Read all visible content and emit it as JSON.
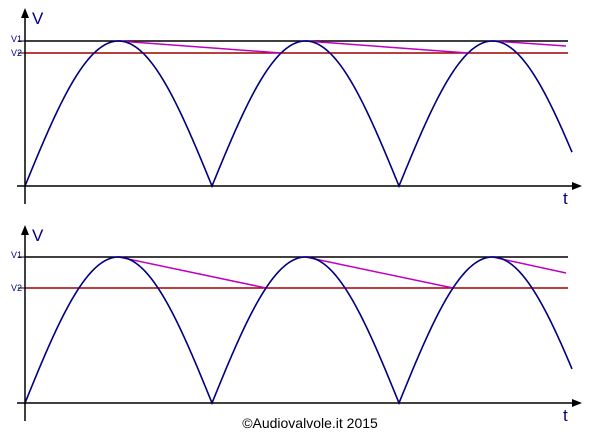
{
  "panels": [
    {
      "y_label": "V",
      "x_label": "t",
      "level1": "V1",
      "level2": "V2"
    },
    {
      "y_label": "V",
      "x_label": "t",
      "level1": "V1",
      "level2": "V2"
    }
  ],
  "footer": "©Audiovalvole.it 2015"
}
